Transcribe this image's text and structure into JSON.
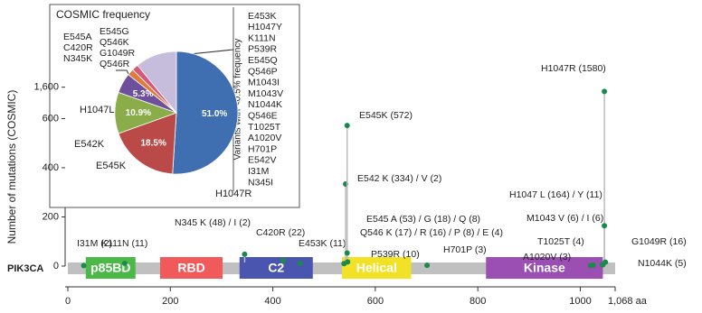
{
  "chart_data": [
    {
      "type": "lollipop",
      "protein": "PIK3CA",
      "y_label": "Number of mutations (COSMIC)",
      "xlim": [
        0,
        1068
      ],
      "xticks": [
        0,
        200,
        400,
        600,
        800,
        1000,
        {
          "value": 1068,
          "label": "1,068 aa"
        }
      ],
      "ylim": [
        0,
        1650
      ],
      "axis_break": [
        620,
        1500
      ],
      "yticks": [
        0,
        200,
        400,
        600,
        {
          "value": 1600,
          "label": "1,600"
        }
      ],
      "color": "#1a8a4a",
      "domains": [
        {
          "name": "p85BD",
          "start": 35,
          "end": 132,
          "color": "#4cb848"
        },
        {
          "name": "RBD",
          "start": 180,
          "end": 302,
          "color": "#f05a5a"
        },
        {
          "name": "C2",
          "start": 335,
          "end": 478,
          "color": "#4a55b0"
        },
        {
          "name": "Helical",
          "start": 535,
          "end": 670,
          "color": "#f2e227"
        },
        {
          "name": "Kinase",
          "start": 816,
          "end": 1044,
          "color": "#9b4fb3"
        }
      ],
      "labels": [
        "I31M (2)",
        "K111N (11)",
        "N345 K (48) / I (2)",
        "C420R (22)",
        "E453K (11)",
        "E542 K (334) / V (2)",
        "E545K (572)",
        "E545 A (53) / G (18) / Q (8)",
        "Q546 K (17) / R (16) / P (8) / E (4)",
        "P539R (10)",
        "H701P (3)",
        "H1047R (1580)",
        "H1047 L (164) / Y (11)",
        "M1043 V (6) / I (6)",
        "T1025T (4)",
        "A1020V (3)",
        "G1049R (16)",
        "N1044K (5)"
      ],
      "x": [
        31,
        111,
        345,
        420,
        453,
        542,
        545,
        545,
        546,
        539,
        701,
        1047,
        1047,
        1043,
        1025,
        1020,
        1049,
        1044
      ],
      "values": [
        2,
        11,
        48,
        22,
        11,
        334,
        572,
        53,
        17,
        10,
        3,
        1580,
        164,
        6,
        4,
        3,
        16,
        5
      ]
    },
    {
      "type": "pie",
      "title": "COSMIC frequency",
      "categories": [
        "H1047R",
        "E545K",
        "E542K",
        "H1047L",
        null,
        null,
        null
      ],
      "values": [
        51.0,
        18.5,
        10.9,
        5.3,
        1.7,
        1.7,
        10.9
      ],
      "value_labels": [
        "51.0%",
        "18.5%",
        "10.9%",
        "5.3%",
        null,
        null,
        null
      ],
      "colors": [
        "#3f6fb0",
        "#b94a48",
        "#8aad4a",
        "#6d4f9c",
        "#e07b39",
        "#d9577a",
        "#c6bcdb"
      ],
      "group_labels": [
        [
          "E545A",
          "C420R",
          "N345K"
        ],
        [
          "E545G",
          "Q546K",
          "G1049R",
          "Q546R"
        ]
      ],
      "minor_variants_title": "Variants with <0.5% frequency",
      "minor_variants": [
        "E453K",
        "H1047Y",
        "K111N",
        "P539R",
        "E545Q",
        "Q546P",
        "M1043I",
        "M1043V",
        "N1044K",
        "Q546E",
        "T1025T",
        "A1020V",
        "H701P",
        "E542V",
        "I31M",
        "N345I"
      ]
    }
  ]
}
